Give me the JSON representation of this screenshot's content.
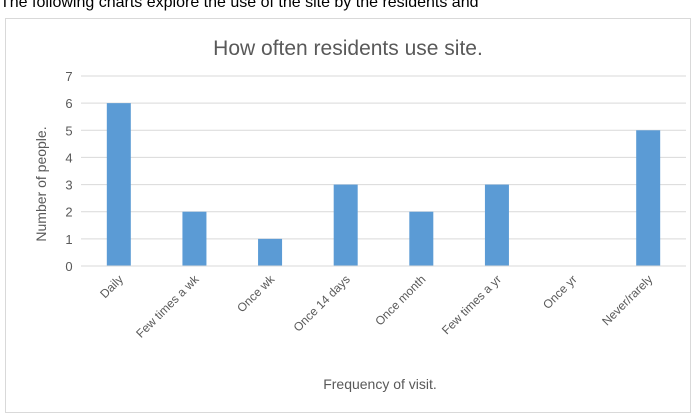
{
  "document": {
    "caption_text": "The following charts explore the use of the site by the residents and"
  },
  "chart_data": {
    "type": "bar",
    "title": "How often residents use site.",
    "xlabel": "Frequency of visit.",
    "ylabel": "Number of people.",
    "categories": [
      "Daily",
      "Few times a wk",
      "Once wk",
      "Once 14 days",
      "Once month",
      "Few times a yr",
      "Once yr",
      "Never/rarely"
    ],
    "values": [
      6,
      2,
      1,
      3,
      2,
      3,
      0,
      5
    ],
    "ylim": [
      0,
      7
    ],
    "yticks": [
      0,
      1,
      2,
      3,
      4,
      5,
      6,
      7
    ],
    "grid": true,
    "legend": "none",
    "colors": {
      "bar": "#5b9bd5",
      "grid": "#d9d9d9",
      "text": "#595959"
    }
  }
}
